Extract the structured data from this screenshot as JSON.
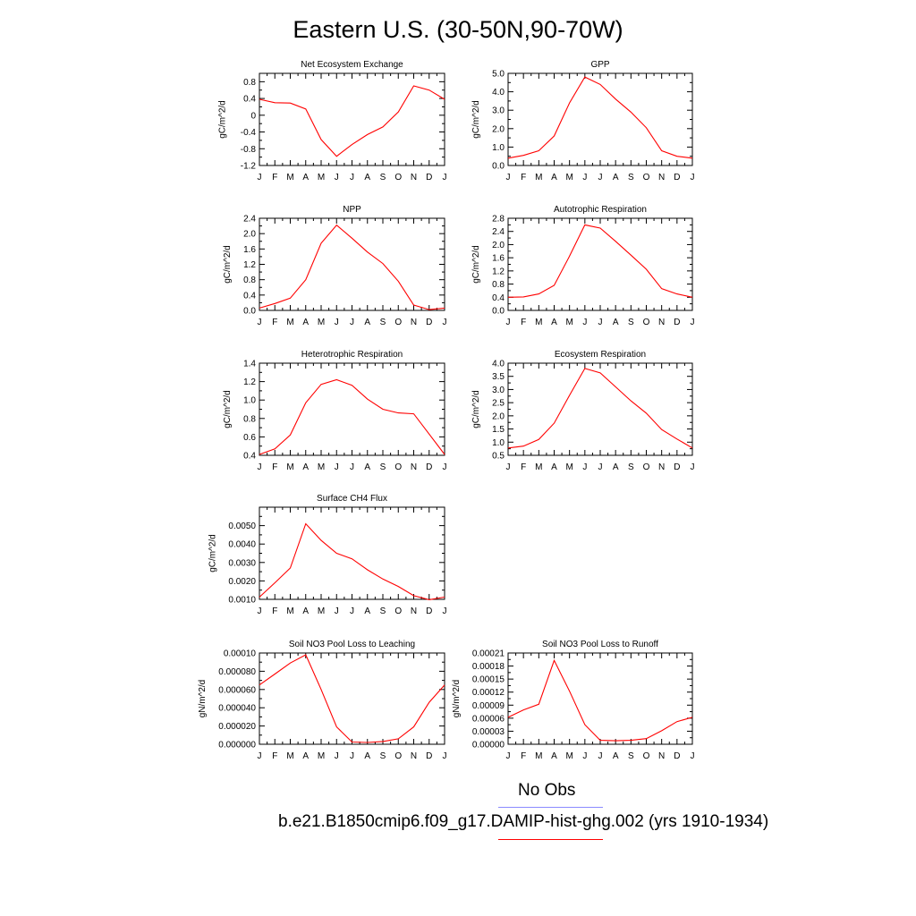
{
  "title": "Eastern U.S. (30-50N,90-70W)",
  "months": [
    "J",
    "F",
    "M",
    "A",
    "M",
    "J",
    "J",
    "A",
    "S",
    "O",
    "N",
    "D",
    "J"
  ],
  "colors": {
    "model": "#ff0000",
    "obs": "#8a8aff",
    "axis": "#000000"
  },
  "legend": {
    "obs_label": "No Obs",
    "model_label": "b.e21.B1850cmip6.f09_g17.DAMIP-hist-ghg.002 (yrs 1910-1934)"
  },
  "chart_data": [
    {
      "type": "line",
      "title": "Net Ecosystem Exchange",
      "ylabel": "gC/m^2/d",
      "ylim": [
        -1.2,
        1.0
      ],
      "yticks": [
        "-1.2",
        "-0.8",
        "-0.4",
        "0",
        "0.4",
        "0.8"
      ],
      "ytick_values": [
        -1.2,
        -0.8,
        -0.4,
        0,
        0.4,
        0.8
      ],
      "values": [
        0.38,
        0.3,
        0.29,
        0.15,
        -0.58,
        -0.98,
        -0.7,
        -0.46,
        -0.28,
        0.08,
        0.7,
        0.6,
        0.38
      ]
    },
    {
      "type": "line",
      "title": "GPP",
      "ylabel": "gC/m^2/d",
      "ylim": [
        0,
        5.0
      ],
      "yticks": [
        "0.0",
        "1.0",
        "2.0",
        "3.0",
        "4.0",
        "5.0"
      ],
      "ytick_values": [
        0,
        1,
        2,
        3,
        4,
        5
      ],
      "values": [
        0.4,
        0.55,
        0.8,
        1.6,
        3.4,
        4.8,
        4.4,
        3.6,
        2.9,
        2.05,
        0.8,
        0.5,
        0.4
      ]
    },
    {
      "type": "line",
      "title": "NPP",
      "ylabel": "gC/m^2/d",
      "ylim": [
        0,
        2.4
      ],
      "yticks": [
        "0.0",
        "0.4",
        "0.8",
        "1.2",
        "1.6",
        "2.0",
        "2.4"
      ],
      "ytick_values": [
        0,
        0.4,
        0.8,
        1.2,
        1.6,
        2.0,
        2.4
      ],
      "values": [
        0.06,
        0.18,
        0.32,
        0.8,
        1.75,
        2.22,
        1.88,
        1.52,
        1.22,
        0.76,
        0.14,
        0.02,
        0.06
      ]
    },
    {
      "type": "line",
      "title": "Autotrophic Respiration",
      "ylabel": "gC/m^2/d",
      "ylim": [
        0,
        2.8
      ],
      "yticks": [
        "0.0",
        "0.4",
        "0.8",
        "1.2",
        "1.6",
        "2.0",
        "2.4",
        "2.8"
      ],
      "ytick_values": [
        0,
        0.4,
        0.8,
        1.2,
        1.6,
        2.0,
        2.4,
        2.8
      ],
      "values": [
        0.4,
        0.41,
        0.5,
        0.76,
        1.65,
        2.6,
        2.5,
        2.1,
        1.68,
        1.25,
        0.66,
        0.5,
        0.4
      ]
    },
    {
      "type": "line",
      "title": "Heterotrophic Respiration",
      "ylabel": "gC/m^2/d",
      "ylim": [
        0.4,
        1.4
      ],
      "yticks": [
        "0.4",
        "0.6",
        "0.8",
        "1.0",
        "1.2",
        "1.4"
      ],
      "ytick_values": [
        0.4,
        0.6,
        0.8,
        1.0,
        1.2,
        1.4
      ],
      "values": [
        0.41,
        0.47,
        0.62,
        0.97,
        1.17,
        1.22,
        1.16,
        1.01,
        0.9,
        0.86,
        0.85,
        0.63,
        0.41
      ]
    },
    {
      "type": "line",
      "title": "Ecosystem Respiration",
      "ylabel": "gC/m^2/d",
      "ylim": [
        0.5,
        4.0
      ],
      "yticks": [
        "0.5",
        "1.0",
        "1.5",
        "2.0",
        "2.5",
        "3.0",
        "3.5",
        "4.0"
      ],
      "ytick_values": [
        0.5,
        1.0,
        1.5,
        2.0,
        2.5,
        3.0,
        3.5,
        4.0
      ],
      "values": [
        0.78,
        0.85,
        1.1,
        1.72,
        2.78,
        3.8,
        3.63,
        3.1,
        2.57,
        2.1,
        1.48,
        1.12,
        0.78
      ]
    },
    {
      "type": "line",
      "title": "Surface CH4 Flux",
      "ylabel": "gC/m^2/d",
      "ylim": [
        0.001,
        0.006
      ],
      "yticks": [
        "0.0010",
        "0.0020",
        "0.0030",
        "0.0040",
        "0.0050"
      ],
      "ytick_values": [
        0.001,
        0.002,
        0.003,
        0.004,
        0.005
      ],
      "values": [
        0.00112,
        0.0019,
        0.0027,
        0.0051,
        0.0042,
        0.0035,
        0.0032,
        0.0026,
        0.0021,
        0.0017,
        0.0012,
        0.00098,
        0.00112
      ]
    },
    {
      "type": "line",
      "title": "Soil NO3 Pool Loss to Leaching",
      "ylabel": "gN/m^2/d",
      "ylim": [
        0,
        0.0001
      ],
      "yticks": [
        "0.000000",
        "0.000020",
        "0.000040",
        "0.000060",
        "0.000080",
        "0.00010"
      ],
      "ytick_values": [
        0,
        2e-05,
        4e-05,
        6e-05,
        8e-05,
        0.0001
      ],
      "values": [
        6.5e-05,
        7.7e-05,
        8.9e-05,
        9.8e-05,
        6e-05,
        1.9e-05,
        2.5e-06,
        2e-06,
        3e-06,
        6e-06,
        1.9e-05,
        4.6e-05,
        6.5e-05
      ]
    },
    {
      "type": "line",
      "title": "Soil NO3 Pool Loss to Runoff",
      "ylabel": "gN/m^2/d",
      "ylim": [
        0,
        0.00021
      ],
      "yticks": [
        "0.00000",
        "0.00003",
        "0.00006",
        "0.00009",
        "0.00012",
        "0.00015",
        "0.00018",
        "0.00021"
      ],
      "ytick_values": [
        0,
        3e-05,
        6e-05,
        9e-05,
        0.00012,
        0.00015,
        0.00018,
        0.00021
      ],
      "values": [
        6.2e-05,
        7.9e-05,
        9.2e-05,
        0.000193,
        0.000122,
        4.5e-05,
        9e-06,
        8e-06,
        9e-06,
        1.3e-05,
        3.1e-05,
        5.2e-05,
        6.2e-05
      ]
    }
  ]
}
